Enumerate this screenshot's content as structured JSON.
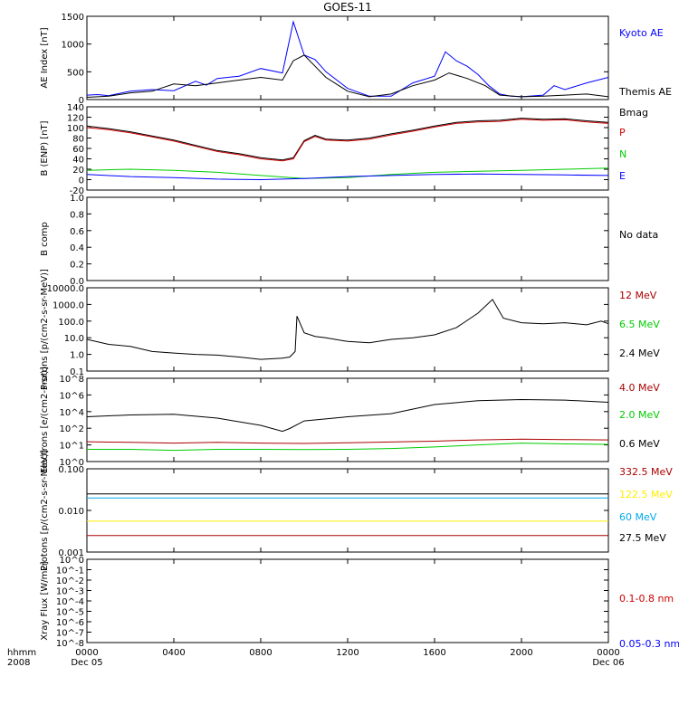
{
  "chart_data": [
    {
      "type": "line",
      "title": "GOES-11",
      "ylabel": "AE Index [nT]",
      "yticks": [
        "0",
        "500",
        "1000",
        "1500"
      ],
      "ylim": [
        0,
        1500
      ],
      "series": [
        {
          "name": "Kyoto AE",
          "color": "#0000ff",
          "x": [
            0,
            30,
            60,
            120,
            180,
            240,
            300,
            330,
            360,
            420,
            480,
            540,
            570,
            600,
            630,
            660,
            720,
            780,
            840,
            900,
            960,
            990,
            1020,
            1050,
            1080,
            1110,
            1140,
            1170,
            1200,
            1260,
            1290,
            1320,
            1380,
            1440
          ],
          "y": [
            80,
            90,
            70,
            150,
            180,
            160,
            330,
            260,
            380,
            420,
            560,
            480,
            1400,
            800,
            720,
            500,
            200,
            60,
            60,
            300,
            420,
            860,
            700,
            600,
            450,
            250,
            100,
            60,
            50,
            80,
            250,
            180,
            300,
            400
          ]
        },
        {
          "name": "Themis AE",
          "color": "#000000",
          "x": [
            0,
            60,
            120,
            180,
            240,
            300,
            360,
            420,
            480,
            540,
            570,
            600,
            630,
            660,
            720,
            780,
            840,
            900,
            960,
            1000,
            1050,
            1100,
            1140,
            1200,
            1260,
            1320,
            1380,
            1440
          ],
          "y": [
            40,
            60,
            120,
            150,
            280,
            250,
            300,
            350,
            400,
            350,
            700,
            800,
            600,
            400,
            150,
            50,
            100,
            250,
            350,
            480,
            380,
            250,
            80,
            50,
            60,
            80,
            100,
            50
          ]
        }
      ]
    },
    {
      "type": "line",
      "ylabel": "B (ENP) [nT]",
      "yticks": [
        "-20",
        "0",
        "20",
        "40",
        "60",
        "80",
        "100",
        "120",
        "140"
      ],
      "ylim": [
        -20,
        140
      ],
      "series": [
        {
          "name": "Bmag",
          "color": "#000000",
          "x": [
            0,
            60,
            120,
            180,
            240,
            300,
            360,
            420,
            480,
            540,
            570,
            600,
            630,
            660,
            720,
            780,
            840,
            900,
            960,
            1020,
            1080,
            1140,
            1200,
            1260,
            1320,
            1380,
            1440
          ],
          "y": [
            103,
            98,
            92,
            84,
            76,
            66,
            56,
            50,
            42,
            38,
            42,
            75,
            85,
            78,
            76,
            80,
            88,
            95,
            103,
            110,
            113,
            114,
            118,
            116,
            117,
            113,
            110
          ]
        },
        {
          "name": "P",
          "color": "#cc0000",
          "x": [
            0,
            60,
            120,
            180,
            240,
            300,
            360,
            420,
            480,
            540,
            570,
            600,
            630,
            660,
            720,
            780,
            840,
            900,
            960,
            1020,
            1080,
            1140,
            1200,
            1260,
            1320,
            1380,
            1440
          ],
          "y": [
            100,
            96,
            90,
            82,
            74,
            64,
            54,
            48,
            40,
            36,
            40,
            73,
            83,
            76,
            74,
            78,
            86,
            93,
            101,
            108,
            111,
            112,
            116,
            114,
            115,
            111,
            108
          ]
        },
        {
          "name": "N",
          "color": "#00cc00",
          "x": [
            0,
            120,
            240,
            360,
            480,
            600,
            720,
            840,
            960,
            1080,
            1200,
            1320,
            1440
          ],
          "y": [
            18,
            20,
            18,
            14,
            8,
            2,
            4,
            10,
            14,
            16,
            18,
            20,
            22
          ]
        },
        {
          "name": "E",
          "color": "#0000ff",
          "x": [
            0,
            120,
            240,
            360,
            480,
            600,
            720,
            840,
            960,
            1080,
            1200,
            1320,
            1440
          ],
          "y": [
            10,
            6,
            4,
            1,
            0,
            2,
            6,
            8,
            10,
            11,
            10,
            9,
            8
          ]
        }
      ]
    },
    {
      "type": "line",
      "ylabel": "B comp",
      "yticks": [
        "0.0",
        "0.2",
        "0.4",
        "0.6",
        "0.8",
        "1.0"
      ],
      "ylim": [
        0,
        1
      ],
      "series": [
        {
          "name": "No data",
          "color": "#000000",
          "x": [],
          "y": []
        }
      ]
    },
    {
      "type": "line",
      "ylabel": "Protons [p/(cm2-s-sr-MeV)]",
      "yscale": "log",
      "yticks": [
        "0.1",
        "1.0",
        "10.0",
        "100.0",
        "1000.0",
        "10000.0"
      ],
      "ylim": [
        0.1,
        10000
      ],
      "series": [
        {
          "name": "12 MeV",
          "color": "#aa0000",
          "x": [],
          "y": []
        },
        {
          "name": "6.5 MeV",
          "color": "#00cc00",
          "x": [],
          "y": []
        },
        {
          "name": "2.4 MeV",
          "color": "#000000",
          "x": [
            0,
            60,
            120,
            180,
            240,
            300,
            360,
            420,
            480,
            540,
            560,
            575,
            580,
            600,
            630,
            660,
            720,
            780,
            840,
            900,
            960,
            1020,
            1080,
            1120,
            1150,
            1200,
            1260,
            1320,
            1380,
            1420,
            1440
          ],
          "y": [
            8,
            4,
            3,
            1.5,
            1.2,
            1,
            0.9,
            0.7,
            0.5,
            0.6,
            0.7,
            1.5,
            200,
            20,
            12,
            10,
            6,
            5,
            8,
            10,
            15,
            40,
            300,
            2000,
            150,
            80,
            70,
            80,
            60,
            100,
            70
          ]
        }
      ]
    },
    {
      "type": "line",
      "ylabel": "Electrons [e/(cm2-s-sr)]",
      "yscale": "log",
      "yticks": [
        "10^0",
        "10^1",
        "10^2",
        "10^4",
        "10^6",
        "10^8"
      ],
      "ylim": [
        1,
        100000000
      ],
      "series": [
        {
          "name": "4.0 MeV",
          "color": "#aa0000",
          "x": [
            0,
            120,
            240,
            360,
            480,
            600,
            720,
            840,
            960,
            1080,
            1200,
            1320,
            1440
          ],
          "y": [
            80,
            70,
            60,
            70,
            60,
            55,
            65,
            75,
            90,
            120,
            140,
            130,
            120
          ]
        },
        {
          "name": "2.0 MeV",
          "color": "#00cc00",
          "x": [
            0,
            120,
            240,
            360,
            480,
            600,
            720,
            840,
            960,
            1080,
            1200,
            1320,
            1440
          ],
          "y": [
            15,
            15,
            12,
            15,
            15,
            14,
            15,
            18,
            25,
            40,
            60,
            50,
            45
          ]
        },
        {
          "name": "0.6 MeV",
          "color": "#000000",
          "x": [
            0,
            120,
            240,
            360,
            480,
            540,
            560,
            600,
            720,
            840,
            960,
            1080,
            1200,
            1320,
            1440
          ],
          "y": [
            20000,
            30000,
            35000,
            15000,
            3000,
            800,
            1500,
            8000,
            20000,
            40000,
            300000,
            700000,
            900000,
            800000,
            500000
          ]
        }
      ]
    },
    {
      "type": "line",
      "ylabel": "Protons [p/(cm2-s-sr-MeV)]",
      "yscale": "log",
      "yticks": [
        "0.001",
        "0.010",
        "0.100"
      ],
      "ylim": [
        0.001,
        0.1
      ],
      "series": [
        {
          "name": "332.5 MeV",
          "color": "#aa0000",
          "x": [
            0,
            360,
            720,
            1080,
            1440
          ],
          "y": [
            0.0025,
            0.0025,
            0.0025,
            0.0025,
            0.0025
          ]
        },
        {
          "name": "122.5 MeV",
          "color": "#ffee00",
          "x": [
            0,
            360,
            720,
            1080,
            1440
          ],
          "y": [
            0.0055,
            0.0055,
            0.0055,
            0.0055,
            0.0055
          ]
        },
        {
          "name": "60 MeV",
          "color": "#00aaee",
          "x": [
            0,
            360,
            720,
            1080,
            1440
          ],
          "y": [
            0.02,
            0.02,
            0.02,
            0.02,
            0.02
          ]
        },
        {
          "name": "27.5 MeV",
          "color": "#000000",
          "x": [
            0,
            360,
            720,
            1080,
            1440
          ],
          "y": [
            0.025,
            0.025,
            0.025,
            0.025,
            0.025
          ]
        }
      ]
    },
    {
      "type": "line",
      "ylabel": "Xray Flux [W/m2]",
      "yscale": "log",
      "yticks": [
        "10^-8",
        "10^-7",
        "10^-6",
        "10^-5",
        "10^-4",
        "10^-3",
        "10^-2",
        "10^-1",
        "10^0"
      ],
      "ylim": [
        1e-08,
        1
      ],
      "series": [
        {
          "name": "0.1-0.8 nm",
          "color": "#cc0000",
          "x": [],
          "y": []
        },
        {
          "name": "0.05-0.3 nm",
          "color": "#0000ff",
          "x": [],
          "y": []
        }
      ]
    }
  ],
  "xaxis": {
    "left_label_top": "hhmm",
    "left_label_bottom": "2008",
    "ticks": [
      "0000",
      "0400",
      "0800",
      "1200",
      "1600",
      "2000",
      "0000"
    ],
    "dates": [
      "Dec 05",
      "Dec 06"
    ],
    "xlim": [
      0,
      1440
    ]
  }
}
